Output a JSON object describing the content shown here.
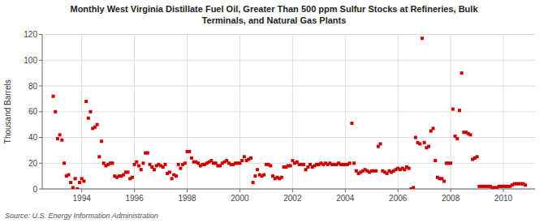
{
  "chart_data": {
    "type": "scatter",
    "title": "Monthly West Virginia Distillate Fuel Oil, Greater Than 500 ppm Sulfur Stocks at Refineries, Bulk\nTerminals, and Natural Gas Plants",
    "ylabel": "Thousand Barrels",
    "source": "Source: U.S. Energy Information Administration",
    "color": "#cc0000",
    "marker": "square",
    "grid": true,
    "xlim": [
      1992.5,
      2011.2
    ],
    "xticks": [
      1994,
      1996,
      1998,
      2000,
      2002,
      2004,
      2006,
      2008,
      2010
    ],
    "ylim": [
      0,
      120
    ],
    "yticks": [
      0,
      20,
      40,
      60,
      80,
      100,
      120
    ],
    "x": [
      1992.917,
      1993.0,
      1993.083,
      1993.167,
      1993.25,
      1993.333,
      1993.417,
      1993.5,
      1993.583,
      1993.667,
      1993.75,
      1993.833,
      1993.917,
      1994.0,
      1994.083,
      1994.167,
      1994.25,
      1994.333,
      1994.417,
      1994.5,
      1994.583,
      1994.667,
      1994.75,
      1994.833,
      1994.917,
      1995.0,
      1995.083,
      1995.167,
      1995.25,
      1995.333,
      1995.417,
      1995.5,
      1995.583,
      1995.667,
      1995.75,
      1995.833,
      1995.917,
      1996.0,
      1996.083,
      1996.167,
      1996.25,
      1996.333,
      1996.417,
      1996.5,
      1996.583,
      1996.667,
      1996.75,
      1996.833,
      1996.917,
      1997.0,
      1997.083,
      1997.167,
      1997.25,
      1997.333,
      1997.417,
      1997.5,
      1997.583,
      1997.667,
      1997.75,
      1997.833,
      1997.917,
      1998.0,
      1998.083,
      1998.167,
      1998.25,
      1998.333,
      1998.417,
      1998.5,
      1998.583,
      1998.667,
      1998.75,
      1998.833,
      1998.917,
      1999.0,
      1999.083,
      1999.167,
      1999.25,
      1999.333,
      1999.417,
      1999.5,
      1999.583,
      1999.667,
      1999.75,
      1999.833,
      1999.917,
      2000.0,
      2000.083,
      2000.167,
      2000.25,
      2000.333,
      2000.417,
      2000.5,
      2000.583,
      2000.667,
      2000.75,
      2000.833,
      2000.917,
      2001.0,
      2001.083,
      2001.167,
      2001.25,
      2001.333,
      2001.417,
      2001.5,
      2001.583,
      2001.667,
      2001.75,
      2001.833,
      2001.917,
      2002.0,
      2002.083,
      2002.167,
      2002.25,
      2002.333,
      2002.417,
      2002.5,
      2002.583,
      2002.667,
      2002.75,
      2002.833,
      2002.917,
      2003.0,
      2003.083,
      2003.167,
      2003.25,
      2003.333,
      2003.417,
      2003.5,
      2003.583,
      2003.667,
      2003.75,
      2003.833,
      2003.917,
      2004.0,
      2004.083,
      2004.167,
      2004.25,
      2004.333,
      2004.417,
      2004.5,
      2004.583,
      2004.667,
      2004.75,
      2004.833,
      2004.917,
      2005.0,
      2005.083,
      2005.167,
      2005.25,
      2005.333,
      2005.417,
      2005.5,
      2005.583,
      2005.667,
      2005.75,
      2005.833,
      2005.917,
      2006.0,
      2006.083,
      2006.167,
      2006.25,
      2006.333,
      2006.417,
      2006.5,
      2006.583,
      2006.667,
      2006.75,
      2006.833,
      2006.917,
      2007.0,
      2007.083,
      2007.167,
      2007.25,
      2007.333,
      2007.417,
      2007.5,
      2007.583,
      2007.667,
      2007.75,
      2007.833,
      2007.917,
      2008.0,
      2008.083,
      2008.167,
      2008.25,
      2008.333,
      2008.417,
      2008.5,
      2008.583,
      2008.667,
      2008.75,
      2008.833,
      2008.917,
      2009.0,
      2009.083,
      2009.167,
      2009.25,
      2009.333,
      2009.417,
      2009.5,
      2009.583,
      2009.667,
      2009.75,
      2009.833,
      2009.917,
      2010.0,
      2010.083,
      2010.167,
      2010.25,
      2010.333,
      2010.417,
      2010.5,
      2010.583,
      2010.667,
      2010.75,
      2010.833
    ],
    "values": [
      72,
      60,
      39,
      42,
      38,
      20,
      10,
      11,
      5,
      1,
      8,
      0,
      5,
      8,
      6,
      68,
      55,
      60,
      47,
      48,
      50,
      25,
      37,
      20,
      18,
      19,
      20,
      20,
      10,
      9,
      10,
      10,
      11,
      13,
      13,
      8,
      9,
      19,
      21,
      18,
      15,
      20,
      28,
      28,
      19,
      17,
      15,
      18,
      19,
      18,
      17,
      19,
      12,
      13,
      8,
      11,
      10,
      19,
      16,
      19,
      20,
      29,
      29,
      24,
      21,
      21,
      20,
      18,
      19,
      19,
      20,
      21,
      22,
      20,
      20,
      18,
      18,
      20,
      21,
      22,
      20,
      19,
      19,
      20,
      20,
      20,
      22,
      25,
      22,
      23,
      24,
      5,
      10,
      15,
      11,
      10,
      11,
      19,
      19,
      18,
      10,
      8,
      9,
      8,
      9,
      17,
      17,
      18,
      18,
      22,
      20,
      21,
      19,
      19,
      19,
      15,
      17,
      19,
      17,
      18,
      19,
      19,
      20,
      19,
      20,
      19,
      20,
      19,
      19,
      19,
      20,
      19,
      19,
      19,
      19,
      20,
      51,
      20,
      14,
      12,
      13,
      14,
      15,
      14,
      13,
      14,
      14,
      14,
      33,
      35,
      14,
      13,
      12,
      14,
      13,
      14,
      15,
      16,
      15,
      16,
      15,
      17,
      16,
      0,
      1,
      40,
      36,
      35,
      117,
      36,
      32,
      33,
      45,
      47,
      22,
      9,
      8,
      8,
      6,
      20,
      20,
      20,
      62,
      41,
      39,
      61,
      90,
      44,
      44,
      43,
      42,
      23,
      24,
      25,
      2,
      2,
      2,
      2,
      2,
      2,
      1,
      1,
      1,
      2,
      2,
      2,
      2,
      2,
      2,
      3,
      4,
      4,
      4,
      4,
      4,
      3
    ]
  }
}
